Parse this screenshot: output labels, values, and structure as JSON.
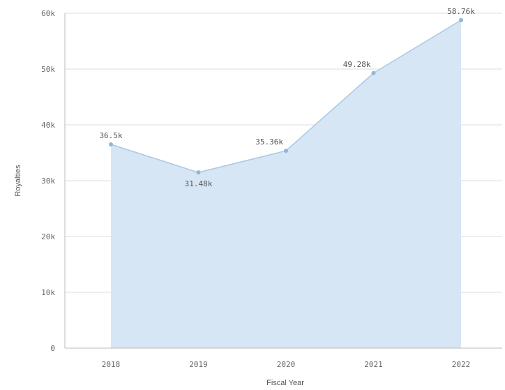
{
  "chart_data": {
    "type": "area",
    "x": [
      "2018",
      "2019",
      "2020",
      "2021",
      "2022"
    ],
    "series": [
      {
        "values": [
          36.5,
          31.48,
          35.36,
          49.28,
          58.76
        ],
        "data_labels": [
          "36.5k",
          "31.48k",
          "35.36k",
          "49.28k",
          "58.76k"
        ]
      }
    ],
    "xlabel": "Fiscal Year",
    "ylabel": "Royalties",
    "ylim": [
      0,
      60
    ],
    "yticks": [
      0,
      10,
      20,
      30,
      40,
      50,
      60
    ],
    "ytick_labels": [
      "0",
      "10k",
      "20k",
      "30k",
      "40k",
      "50k",
      "60k"
    ],
    "grid": true,
    "colors": {
      "area_fill": "#d6e6f5",
      "line": "#a9c9e6",
      "marker": "#8fb6da",
      "gridline": "#dddddd",
      "axis": "#bbbbbb"
    }
  }
}
